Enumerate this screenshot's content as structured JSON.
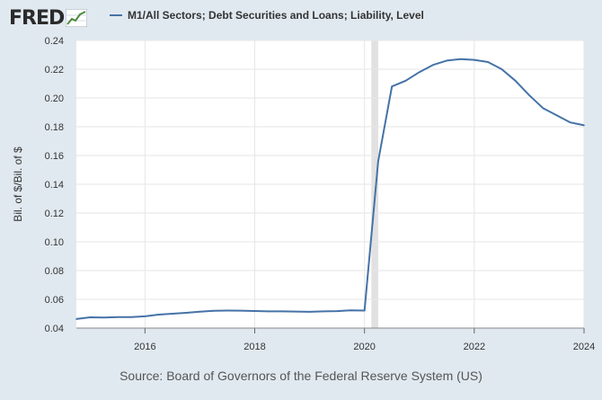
{
  "header": {
    "logo_text": "FRED",
    "logo_icon": "trend-chart-icon"
  },
  "legend": {
    "label": "M1/All Sectors; Debt Securities and Loans; Liability, Level",
    "color": "#4572a7"
  },
  "source": "Source: Board of Governors of the Federal Reserve System (US)",
  "colors": {
    "background": "#e1e9f0",
    "plot_bg": "#ffffff",
    "line": "#4572a7",
    "recession": "#e1e1e1",
    "grid": "#e6e6e6"
  },
  "chart_data": {
    "type": "line",
    "ylabel": "Bil. of $/Bil. of $",
    "xlabel": "",
    "ylim": [
      0.04,
      0.24
    ],
    "xlim": [
      2014.75,
      2024.0
    ],
    "yticks": [
      "0.04",
      "0.06",
      "0.08",
      "0.10",
      "0.12",
      "0.14",
      "0.16",
      "0.18",
      "0.20",
      "0.22",
      "0.24"
    ],
    "xticks": [
      "2016",
      "2018",
      "2020",
      "2022",
      "2024"
    ],
    "grid": true,
    "recession": [
      2020.125,
      2020.25
    ],
    "series": [
      {
        "name": "M1/All Sectors; Debt Securities and Loans; Liability, Level",
        "x": [
          2014.75,
          2015.0,
          2015.25,
          2015.5,
          2015.75,
          2016.0,
          2016.25,
          2016.5,
          2016.75,
          2017.0,
          2017.25,
          2017.5,
          2017.75,
          2018.0,
          2018.25,
          2018.5,
          2018.75,
          2019.0,
          2019.25,
          2019.5,
          2019.75,
          2020.0,
          2020.25,
          2020.5,
          2020.75,
          2021.0,
          2021.25,
          2021.5,
          2021.75,
          2022.0,
          2022.25,
          2022.5,
          2022.75,
          2023.0,
          2023.25,
          2023.5,
          2023.75,
          2024.0
        ],
        "values": [
          0.0463,
          0.0475,
          0.0473,
          0.0476,
          0.0477,
          0.0482,
          0.0494,
          0.05,
          0.0506,
          0.0514,
          0.052,
          0.0522,
          0.0521,
          0.0519,
          0.0516,
          0.0516,
          0.0515,
          0.0513,
          0.0516,
          0.0518,
          0.0524,
          0.0522,
          0.156,
          0.208,
          0.212,
          0.218,
          0.223,
          0.226,
          0.227,
          0.2265,
          0.225,
          0.22,
          0.212,
          0.202,
          0.193,
          0.188,
          0.183,
          0.181
        ]
      }
    ]
  }
}
